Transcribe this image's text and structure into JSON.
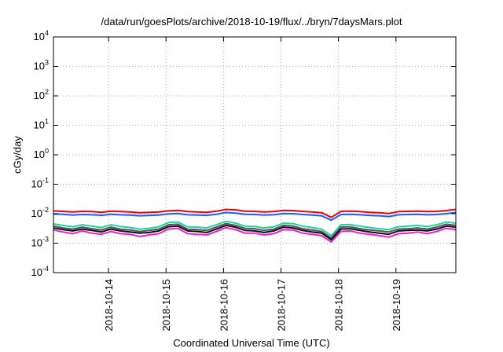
{
  "chart_data": {
    "type": "line",
    "title": "/data/run/goesPlots/archive/2018-10-19/flux/../bryn/7daysMars.plot",
    "xlabel": "Coordinated Universal Time (UTC)",
    "ylabel": "cGy/day",
    "yscale": "log",
    "ylim": [
      0.0001,
      10000
    ],
    "y_ticks": [
      {
        "value": 0.0001,
        "base": "10",
        "exp": "-4"
      },
      {
        "value": 0.001,
        "base": "10",
        "exp": "-3"
      },
      {
        "value": 0.01,
        "base": "10",
        "exp": "-2"
      },
      {
        "value": 0.1,
        "base": "10",
        "exp": "-1"
      },
      {
        "value": 1,
        "base": "10",
        "exp": "0"
      },
      {
        "value": 10,
        "base": "10",
        "exp": "1"
      },
      {
        "value": 100,
        "base": "10",
        "exp": "2"
      },
      {
        "value": 1000,
        "base": "10",
        "exp": "3"
      },
      {
        "value": 10000,
        "base": "10",
        "exp": "4"
      }
    ],
    "x_range": [
      "2018-10-13 01:00",
      "2018-10-20 01:00"
    ],
    "x_ticks": [
      {
        "value": "2018-10-14",
        "label": "2018-10-14"
      },
      {
        "value": "2018-10-15",
        "label": "2018-10-15"
      },
      {
        "value": "2018-10-16",
        "label": "2018-10-16"
      },
      {
        "value": "2018-10-17",
        "label": "2018-10-17"
      },
      {
        "value": "2018-10-18",
        "label": "2018-10-18"
      },
      {
        "value": "2018-10-19",
        "label": "2018-10-19"
      }
    ],
    "grid": true,
    "legend": "none",
    "x": [
      "2018-10-13 01:00",
      "2018-10-13 05:00",
      "2018-10-13 09:00",
      "2018-10-13 13:00",
      "2018-10-13 17:00",
      "2018-10-13 21:00",
      "2018-10-14 01:00",
      "2018-10-14 05:00",
      "2018-10-14 09:00",
      "2018-10-14 13:00",
      "2018-10-14 17:00",
      "2018-10-14 21:00",
      "2018-10-15 01:00",
      "2018-10-15 05:00",
      "2018-10-15 09:00",
      "2018-10-15 13:00",
      "2018-10-15 17:00",
      "2018-10-15 21:00",
      "2018-10-16 01:00",
      "2018-10-16 05:00",
      "2018-10-16 09:00",
      "2018-10-16 13:00",
      "2018-10-16 17:00",
      "2018-10-16 21:00",
      "2018-10-17 01:00",
      "2018-10-17 05:00",
      "2018-10-17 09:00",
      "2018-10-17 13:00",
      "2018-10-17 17:00",
      "2018-10-17 21:00",
      "2018-10-18 01:00",
      "2018-10-18 05:00",
      "2018-10-18 09:00",
      "2018-10-18 13:00",
      "2018-10-18 17:00",
      "2018-10-18 21:00",
      "2018-10-19 01:00",
      "2018-10-19 05:00",
      "2018-10-19 09:00",
      "2018-10-19 13:00",
      "2018-10-19 17:00",
      "2018-10-19 21:00",
      "2018-10-20 01:00"
    ],
    "series": [
      {
        "color": "#e8000b",
        "values": [
          0.0125,
          0.012,
          0.0115,
          0.012,
          0.0118,
          0.0112,
          0.0122,
          0.0118,
          0.0115,
          0.0108,
          0.0112,
          0.0115,
          0.0125,
          0.013,
          0.0118,
          0.0115,
          0.0112,
          0.0122,
          0.014,
          0.0135,
          0.0122,
          0.012,
          0.0115,
          0.0118,
          0.013,
          0.0128,
          0.012,
          0.0115,
          0.0108,
          0.0075,
          0.012,
          0.0122,
          0.0118,
          0.0112,
          0.0108,
          0.0102,
          0.0118,
          0.012,
          0.0122,
          0.0118,
          0.012,
          0.0128,
          0.014
        ]
      },
      {
        "color": "#1f5cff",
        "values": [
          0.0098,
          0.0095,
          0.009,
          0.0094,
          0.0092,
          0.0088,
          0.0095,
          0.0092,
          0.009,
          0.0085,
          0.0088,
          0.009,
          0.0098,
          0.0102,
          0.0092,
          0.009,
          0.0088,
          0.0095,
          0.011,
          0.0105,
          0.0095,
          0.0094,
          0.009,
          0.0092,
          0.0102,
          0.01,
          0.0094,
          0.009,
          0.0085,
          0.006,
          0.0094,
          0.0095,
          0.0092,
          0.0088,
          0.0085,
          0.008,
          0.0092,
          0.0094,
          0.0095,
          0.0092,
          0.0094,
          0.01,
          0.011
        ]
      },
      {
        "color": "#1fd1a5",
        "values": [
          0.0045,
          0.004,
          0.0036,
          0.0042,
          0.0038,
          0.0034,
          0.0042,
          0.0037,
          0.0034,
          0.003,
          0.0032,
          0.0036,
          0.005,
          0.0052,
          0.0036,
          0.0035,
          0.0033,
          0.0042,
          0.0055,
          0.0048,
          0.0038,
          0.0037,
          0.0033,
          0.0036,
          0.0048,
          0.0046,
          0.0038,
          0.0034,
          0.003,
          0.0018,
          0.0042,
          0.0043,
          0.0038,
          0.0034,
          0.0031,
          0.0029,
          0.0036,
          0.0038,
          0.004,
          0.0037,
          0.0042,
          0.0052,
          0.0048
        ]
      },
      {
        "color": "#555555",
        "values": [
          0.0038,
          0.0033,
          0.003,
          0.0035,
          0.0031,
          0.0028,
          0.0035,
          0.003,
          0.0028,
          0.0025,
          0.0027,
          0.003,
          0.0042,
          0.0044,
          0.003,
          0.0029,
          0.0027,
          0.0035,
          0.0046,
          0.004,
          0.0032,
          0.0031,
          0.0027,
          0.003,
          0.004,
          0.0038,
          0.0031,
          0.0028,
          0.0025,
          0.0015,
          0.0035,
          0.0036,
          0.0031,
          0.0028,
          0.0026,
          0.0024,
          0.003,
          0.0031,
          0.0033,
          0.003,
          0.0035,
          0.0044,
          0.004
        ]
      },
      {
        "color": "#111111",
        "values": [
          0.0033,
          0.0029,
          0.0026,
          0.003,
          0.0027,
          0.0024,
          0.003,
          0.0026,
          0.0024,
          0.0022,
          0.0023,
          0.0026,
          0.0036,
          0.0038,
          0.0026,
          0.0025,
          0.0023,
          0.003,
          0.004,
          0.0035,
          0.0027,
          0.0026,
          0.0023,
          0.0026,
          0.0035,
          0.0033,
          0.0027,
          0.0024,
          0.0022,
          0.0013,
          0.003,
          0.0031,
          0.0027,
          0.0024,
          0.0022,
          0.002,
          0.0026,
          0.0027,
          0.0028,
          0.0026,
          0.003,
          0.0038,
          0.0035
        ]
      },
      {
        "color": "#ee1fd9",
        "values": [
          0.0028,
          0.0024,
          0.0021,
          0.0026,
          0.0022,
          0.002,
          0.0025,
          0.0021,
          0.002,
          0.0017,
          0.0019,
          0.0021,
          0.003,
          0.0032,
          0.0021,
          0.002,
          0.0019,
          0.0025,
          0.0034,
          0.0029,
          0.0022,
          0.0022,
          0.0019,
          0.0021,
          0.0029,
          0.0028,
          0.0022,
          0.002,
          0.0018,
          0.0011,
          0.0025,
          0.0026,
          0.0022,
          0.002,
          0.0018,
          0.0016,
          0.0021,
          0.0022,
          0.0024,
          0.0021,
          0.0025,
          0.0032,
          0.0029
        ]
      }
    ]
  }
}
